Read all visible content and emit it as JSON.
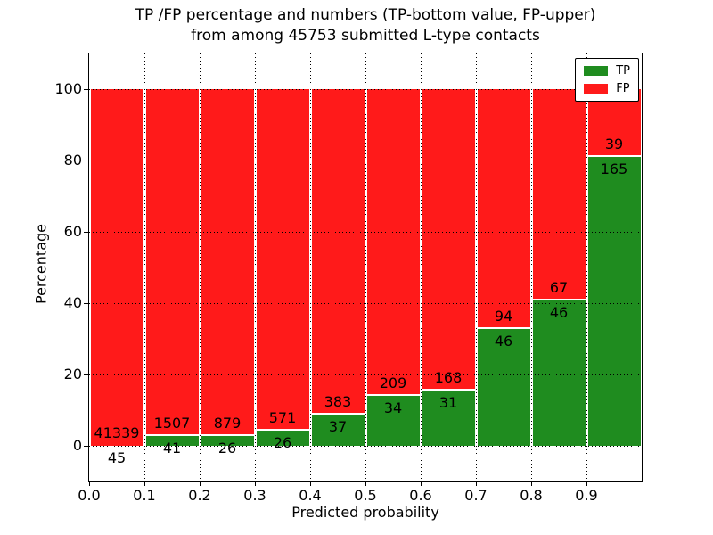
{
  "chart_data": {
    "type": "bar",
    "stacked": true,
    "title": "TP /FP percentage and numbers (TP-bottom value, FP-upper)\nfrom among 45753 submitted L-type contacts",
    "xlabel": "Predicted probability",
    "ylabel": "Percentage",
    "total_submitted": 45753,
    "xlim": [
      0.0,
      1.0
    ],
    "ylim": [
      -10,
      110
    ],
    "bin_width": 0.1,
    "bins": [
      "0.0-0.1",
      "0.1-0.2",
      "0.2-0.3",
      "0.3-0.4",
      "0.4-0.5",
      "0.5-0.6",
      "0.6-0.7",
      "0.7-0.8",
      "0.8-0.9",
      "0.9-1.0"
    ],
    "x_ticks": [
      "0.0",
      "0.1",
      "0.2",
      "0.3",
      "0.4",
      "0.5",
      "0.6",
      "0.7",
      "0.8",
      "0.9"
    ],
    "y_ticks": [
      0,
      20,
      40,
      60,
      80,
      100
    ],
    "grid": "dotted black, drawn over bars",
    "legend_position": "upper right",
    "series": [
      {
        "name": "TP",
        "color": "#1f8c1f",
        "counts": [
          45,
          41,
          26,
          26,
          37,
          34,
          31,
          46,
          46,
          165
        ],
        "percent": [
          0.11,
          2.65,
          2.87,
          4.36,
          8.81,
          13.99,
          15.58,
          32.86,
          40.71,
          80.88
        ]
      },
      {
        "name": "FP",
        "color": "#ff1a1a",
        "counts": [
          41339,
          1507,
          879,
          571,
          383,
          209,
          168,
          94,
          67,
          39
        ],
        "percent": [
          99.89,
          97.35,
          97.13,
          95.64,
          91.19,
          86.01,
          84.42,
          67.14,
          59.29,
          19.12
        ]
      }
    ]
  }
}
